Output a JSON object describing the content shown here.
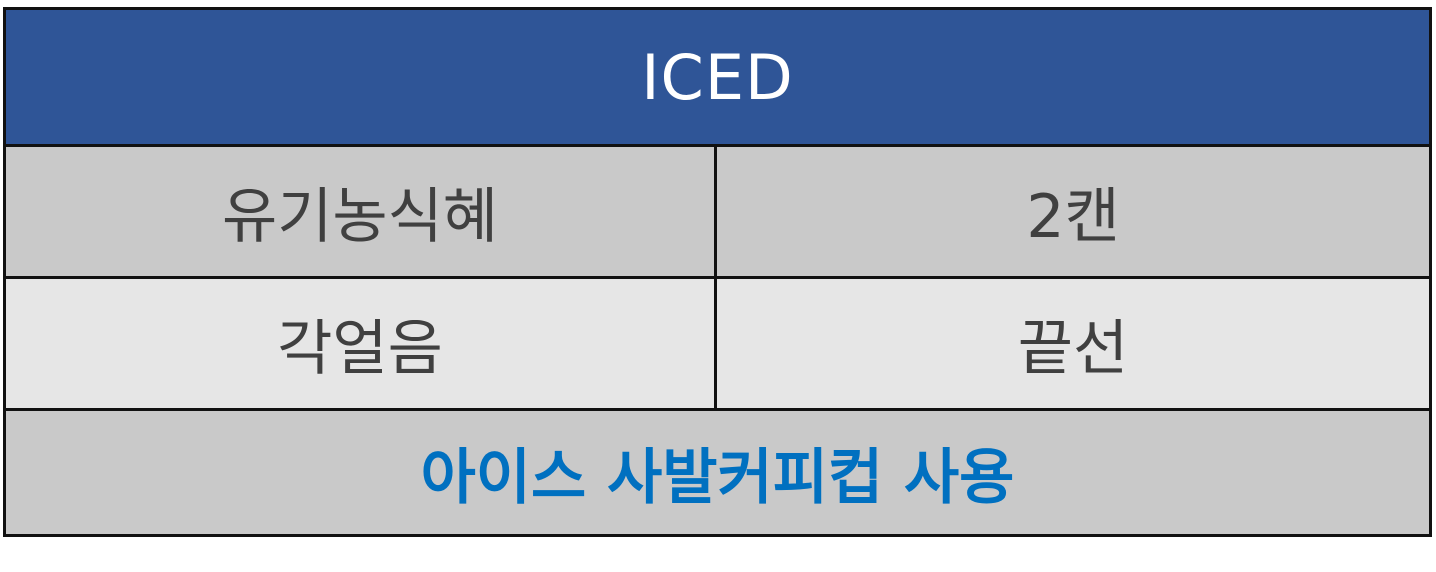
{
  "title": "ICED",
  "rows": [
    {
      "item": "유기농식혜",
      "quantity": "2캔"
    },
    {
      "item": "각얼음",
      "quantity": "끝선"
    }
  ],
  "note": "아이스 사발커피컵 사용",
  "colors": {
    "header_background": "#2f5597",
    "header_text": "#ffffff",
    "row_dark": "#c9c9c9",
    "row_light": "#e6e6e6",
    "body_text": "#404040",
    "note_text": "#0070c0",
    "border": "#111111"
  }
}
